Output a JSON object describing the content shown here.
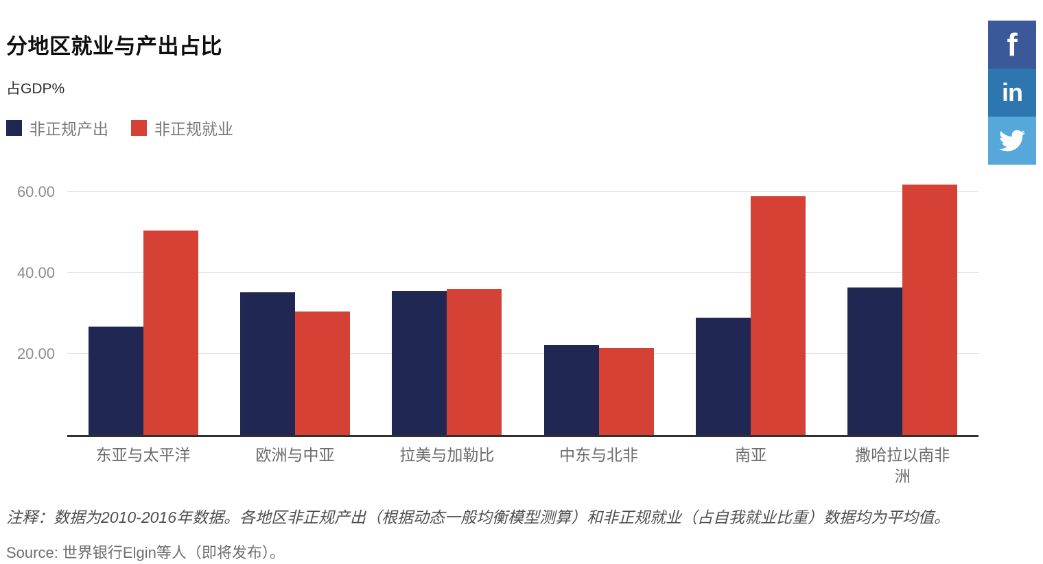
{
  "header": {
    "title": "分地区就业与产出占比",
    "subtitle": "占GDP%"
  },
  "social": {
    "facebook_glyph": "f",
    "linkedin_glyph": "in",
    "facebook_color": "#3b5998",
    "linkedin_color": "#2d76b0",
    "twitter_color": "#55a8d9"
  },
  "chart_data": {
    "type": "bar",
    "categories": [
      "东亚与太平洋",
      "欧洲与中亚",
      "拉美与加勒比",
      "中东与北非",
      "南亚",
      "撒哈拉以南非洲"
    ],
    "series": [
      {
        "name": "非正规产出",
        "color": "#1f2752",
        "values": [
          26.7,
          35.2,
          35.6,
          22.2,
          28.9,
          36.4
        ]
      },
      {
        "name": "非正规就业",
        "color": "#d64136",
        "values": [
          50.4,
          30.5,
          36.0,
          21.5,
          58.9,
          61.9
        ]
      }
    ],
    "title": "分地区就业与产出占比",
    "xlabel": "",
    "ylabel": "占GDP%",
    "yticks": [
      20,
      40,
      60
    ],
    "ytick_labels": [
      "20.00",
      "40.00",
      "60.00"
    ],
    "ylim": [
      0,
      62
    ],
    "grid": "horizontal",
    "legend_position": "top-left"
  },
  "footer": {
    "note": "注释：数据为2010-2016年数据。各地区非正规产出（根据动态一般均衡模型测算）和非正规就业（占自我就业比重）数据均为平均值。",
    "source": "Source: 世界银行Elgin等人（即将发布）。"
  }
}
